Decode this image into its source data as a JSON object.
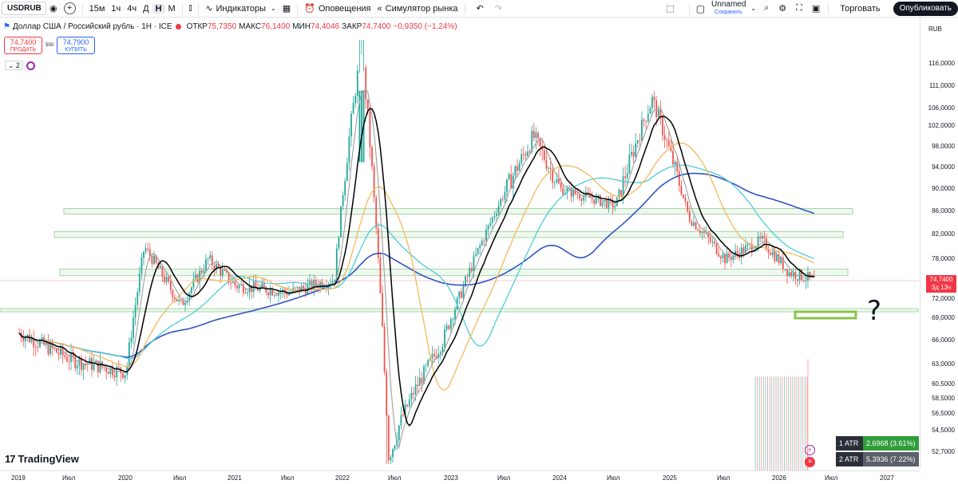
{
  "toolbar": {
    "symbol": "USDRUB",
    "timeframes": [
      "15м",
      "1ч",
      "4ч",
      "Д",
      "Н",
      "М"
    ],
    "active_timeframe": "Н",
    "indicators_label": "Индикаторы",
    "alerts_label": "Оповещения",
    "replay_label": "Симулятор рынка",
    "layout_name": "Unnamed",
    "layout_status": "Сохранить",
    "trade_label": "Торговать",
    "publish_label": "Опубликовать"
  },
  "legend": {
    "title": "Доллар США / Российский рубль · 1Н · ICE",
    "open_label": "ОТКР",
    "open": "75,7350",
    "high_label": "МАКС",
    "high": "76,1400",
    "low_label": "МИН",
    "low": "74,4046",
    "close_label": "ЗАКР",
    "close": "74,7400",
    "change": "−0,9350 (−1,24%)",
    "sell_price": "74,7400",
    "sell_label": "ПРОДАТЬ",
    "spread": "500",
    "buy_price": "74,7900",
    "buy_label": "КУПИТЬ",
    "indicator_count": "2"
  },
  "price_axis": {
    "currency": "RUB",
    "ticks": [
      "116,0000",
      "111,0000",
      "106,0000",
      "102,0000",
      "98,0000",
      "94,0000",
      "90,0000",
      "86,0000",
      "82,0000",
      "78,0000",
      "72,0000",
      "69,0000",
      "66,0000",
      "63,0000",
      "60,5000",
      "58,5000",
      "56,5000",
      "54,5000",
      "52,7000"
    ],
    "last_price": "74,7400",
    "countdown": "3д 13ч"
  },
  "time_axis": {
    "labels": [
      "2019",
      "Июл",
      "2020",
      "Июл",
      "2021",
      "Июл",
      "2022",
      "Июл",
      "2023",
      "Июл",
      "2024",
      "Июл",
      "2025",
      "Июл",
      "2026",
      "Июл",
      "2027"
    ]
  },
  "atr": [
    {
      "name": "1 ATR",
      "value": "2.6968 (3.61%)",
      "color": "#2e9e3a"
    },
    {
      "name": "2 ATR",
      "value": "5.3936 (7.22%)",
      "color": "#5a5f6a"
    }
  ],
  "brand": "TradingView",
  "annotation": "?",
  "colors": {
    "up": "#26a69a",
    "down": "#ef5350",
    "ma_black": "#000000",
    "ma_gray": "#9e9e9e",
    "ma_orange": "#f5b95b",
    "ma_cyan": "#4ecdd6",
    "ma_blue": "#2f55c4",
    "zone": "#a5d6a7",
    "target_zone": "#8bc34a"
  },
  "chart_data": {
    "type": "candlestick",
    "title": "Доллар США / Российский рубль · 1Н · ICE",
    "x_range": [
      "2019",
      "2027"
    ],
    "y_axis_ticks": [
      116,
      111,
      106,
      102,
      98,
      94,
      90,
      86,
      82,
      78,
      72,
      69,
      66,
      63,
      60.5,
      58.5,
      56.5,
      54.5,
      52.7
    ],
    "last_price": 74.74,
    "price_path": [
      {
        "date": "2019-01",
        "price": 67
      },
      {
        "date": "2019-07",
        "price": 63.5
      },
      {
        "date": "2020-01",
        "price": 62
      },
      {
        "date": "2020-03",
        "price": 80
      },
      {
        "date": "2020-07",
        "price": 71
      },
      {
        "date": "2020-10",
        "price": 78
      },
      {
        "date": "2021-01",
        "price": 74
      },
      {
        "date": "2021-07",
        "price": 73
      },
      {
        "date": "2021-12",
        "price": 75
      },
      {
        "date": "2022-03",
        "price": 120
      },
      {
        "date": "2022-06",
        "price": 52
      },
      {
        "date": "2022-09",
        "price": 60
      },
      {
        "date": "2022-12",
        "price": 66
      },
      {
        "date": "2023-07",
        "price": 90
      },
      {
        "date": "2023-10",
        "price": 100
      },
      {
        "date": "2024-01",
        "price": 90
      },
      {
        "date": "2024-07",
        "price": 87
      },
      {
        "date": "2024-11",
        "price": 108
      },
      {
        "date": "2025-03",
        "price": 85
      },
      {
        "date": "2025-07",
        "price": 78
      },
      {
        "date": "2025-11",
        "price": 81
      },
      {
        "date": "2026-02",
        "price": 76
      },
      {
        "date": "2026-05",
        "price": 74.74
      }
    ],
    "zones": [
      {
        "from": 85.5,
        "to": 86.5
      },
      {
        "from": 81.5,
        "to": 82.5
      },
      {
        "from": 75.5,
        "to": 76.5
      },
      {
        "from": 70,
        "to": 70.5
      }
    ],
    "target_zone": {
      "from": 70,
      "to": 71
    },
    "grid": false
  }
}
